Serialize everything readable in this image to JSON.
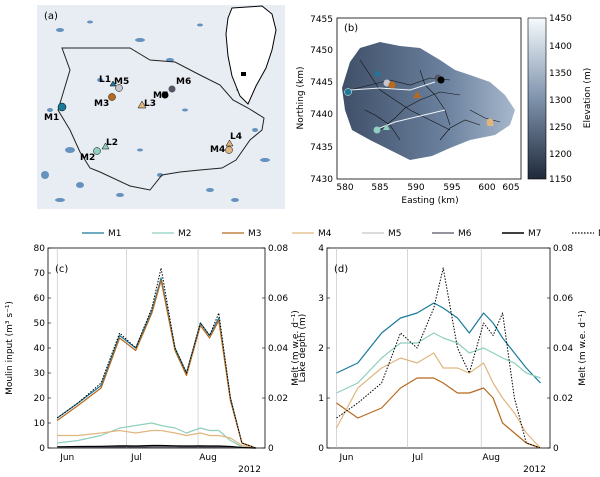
{
  "panel_a": {
    "label": "(a)",
    "sites": [
      {
        "id": "L1",
        "kind": "lake"
      },
      {
        "id": "M5",
        "kind": "moulin"
      },
      {
        "id": "M3",
        "kind": "moulin"
      },
      {
        "id": "L3",
        "kind": "lake"
      },
      {
        "id": "M7",
        "kind": "moulin"
      },
      {
        "id": "M6",
        "kind": "moulin"
      },
      {
        "id": "M1",
        "kind": "moulin"
      },
      {
        "id": "L2",
        "kind": "lake"
      },
      {
        "id": "M2",
        "kind": "moulin"
      },
      {
        "id": "L4",
        "kind": "lake"
      },
      {
        "id": "M4",
        "kind": "moulin"
      }
    ]
  },
  "panel_b": {
    "label": "(b)",
    "ylabel": "Northing (km)",
    "xlabel": "Easting (km)",
    "yticks": [
      "7455",
      "7450",
      "7445",
      "7440",
      "7435",
      "7430"
    ],
    "xticks": [
      "580",
      "585",
      "590",
      "595",
      "600",
      "605"
    ],
    "colorbar_label": "Elevation (m)",
    "colorbar_ticks": [
      "1450",
      "1400",
      "1350",
      "1300",
      "1250",
      "1200",
      "1150"
    ]
  },
  "legend": {
    "entries": [
      {
        "name": "M1",
        "color": "#1a7a9a"
      },
      {
        "name": "M2",
        "color": "#8fcfbf"
      },
      {
        "name": "M3",
        "color": "#b8691e"
      },
      {
        "name": "M4",
        "color": "#e0b67e"
      },
      {
        "name": "M5",
        "color": "#c6c6cc"
      },
      {
        "name": "M6",
        "color": "#555566"
      },
      {
        "name": "M7",
        "color": "#000000"
      },
      {
        "name": "Melt",
        "color": "#000000"
      }
    ]
  },
  "chart_data": [
    {
      "type": "line",
      "panel": "(c)",
      "ylabel": "Moulin input (m³ s⁻¹)",
      "ylabel_right": "Melt (m w.e. d⁻¹)",
      "ylim": [
        0,
        80
      ],
      "ylim_right": [
        0,
        0.08
      ],
      "yticks": [
        "0",
        "10",
        "20",
        "30",
        "40",
        "50",
        "60",
        "70",
        "80"
      ],
      "yticks_right": [
        "0",
        "0.02",
        "0.04",
        "0.06",
        "0.08"
      ],
      "x_labels": [
        "Jun",
        "Jul",
        "Aug"
      ],
      "year": "2012",
      "x": [
        "2012-06-01",
        "2012-06-10",
        "2012-06-20",
        "2012-06-28",
        "2012-07-05",
        "2012-07-12",
        "2012-07-16",
        "2012-07-22",
        "2012-07-27",
        "2012-08-02",
        "2012-08-06",
        "2012-08-10",
        "2012-08-15",
        "2012-08-20",
        "2012-08-26"
      ],
      "series": [
        {
          "name": "M1",
          "values": [
            12,
            18,
            25,
            45,
            40,
            55,
            68,
            40,
            30,
            50,
            45,
            52,
            20,
            2,
            0
          ]
        },
        {
          "name": "M2",
          "values": [
            2,
            3,
            5,
            8,
            9,
            10,
            9,
            8,
            6,
            8,
            7,
            7,
            3,
            0.5,
            0
          ]
        },
        {
          "name": "M3",
          "values": [
            11,
            17,
            24,
            44,
            39,
            54,
            67,
            39,
            29,
            49,
            44,
            51,
            19,
            2,
            0
          ]
        },
        {
          "name": "M4",
          "values": [
            5,
            5,
            6,
            7,
            6,
            7,
            7,
            6,
            5,
            6,
            5,
            5,
            4,
            1,
            0
          ]
        },
        {
          "name": "M5",
          "values": [
            0.5,
            0.5,
            0.6,
            0.8,
            0.7,
            0.9,
            0.9,
            0.8,
            0.7,
            0.8,
            0.7,
            0.7,
            0.5,
            0.2,
            0
          ]
        },
        {
          "name": "M6",
          "values": [
            0.3,
            0.3,
            0.4,
            0.5,
            0.4,
            0.5,
            0.5,
            0.5,
            0.4,
            0.5,
            0.4,
            0.4,
            0.3,
            0.1,
            0
          ]
        },
        {
          "name": "M7",
          "values": [
            0.5,
            0.6,
            0.7,
            0.9,
            0.8,
            1,
            1,
            0.9,
            0.8,
            0.9,
            0.8,
            0.8,
            0.6,
            0.2,
            0
          ]
        },
        {
          "name": "Melt",
          "values": [
            0.012,
            0.018,
            0.026,
            0.046,
            0.04,
            0.056,
            0.072,
            0.04,
            0.03,
            0.05,
            0.045,
            0.054,
            0.02,
            0.002,
            0
          ]
        }
      ]
    },
    {
      "type": "line",
      "panel": "(d)",
      "ylabel": "Lake depth (m)",
      "ylabel_right": "Melt (m w.e. d⁻¹)",
      "ylim": [
        0,
        4
      ],
      "ylim_right": [
        0,
        0.08
      ],
      "yticks": [
        "0",
        "1",
        "2",
        "3",
        "4"
      ],
      "yticks_right": [
        "0",
        "0.02",
        "0.04",
        "0.06",
        "0.08"
      ],
      "x_labels": [
        "Jun",
        "Jul",
        "Aug"
      ],
      "year": "2012",
      "x": [
        "2012-06-01",
        "2012-06-10",
        "2012-06-20",
        "2012-06-28",
        "2012-07-05",
        "2012-07-12",
        "2012-07-16",
        "2012-07-22",
        "2012-07-27",
        "2012-08-02",
        "2012-08-06",
        "2012-08-10",
        "2012-08-15",
        "2012-08-20",
        "2012-08-26"
      ],
      "series": [
        {
          "name": "M1",
          "values": [
            1.5,
            1.7,
            2.3,
            2.6,
            2.7,
            2.9,
            2.8,
            2.6,
            2.3,
            2.7,
            2.5,
            2.2,
            1.9,
            1.6,
            1.3
          ]
        },
        {
          "name": "M2",
          "values": [
            1.1,
            1.3,
            1.8,
            2.1,
            2.1,
            2.3,
            2.2,
            2.1,
            1.9,
            2.0,
            1.9,
            1.8,
            1.7,
            1.5,
            1.4
          ]
        },
        {
          "name": "M3",
          "values": [
            0.9,
            0.6,
            0.8,
            1.2,
            1.4,
            1.4,
            1.3,
            1.1,
            1.1,
            1.2,
            1.0,
            0.5,
            0.3,
            0.1,
            0
          ]
        },
        {
          "name": "M4",
          "values": [
            0.4,
            1.2,
            1.6,
            1.8,
            1.7,
            1.9,
            1.6,
            1.6,
            1.5,
            1.7,
            1.3,
            1.0,
            0.7,
            0.3,
            0
          ]
        },
        {
          "name": "Melt",
          "values": [
            0.012,
            0.018,
            0.026,
            0.046,
            0.04,
            0.056,
            0.072,
            0.04,
            0.03,
            0.05,
            0.045,
            0.054,
            0.02,
            0.002,
            0
          ]
        }
      ]
    }
  ]
}
